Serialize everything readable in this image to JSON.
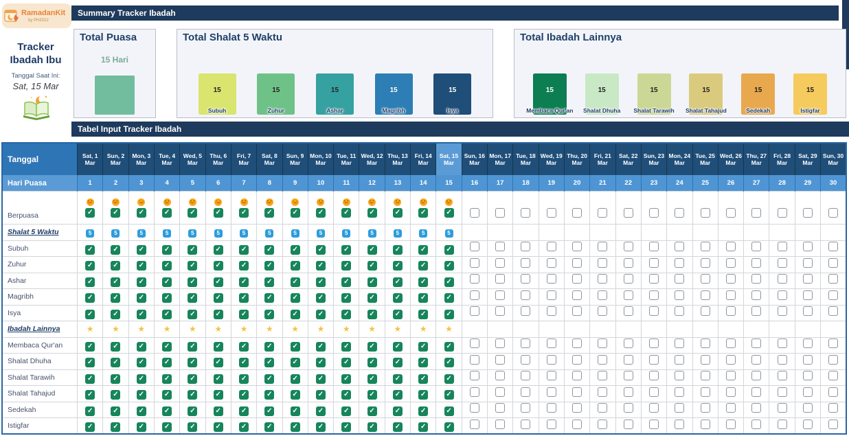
{
  "sidebar": {
    "brand": "RamadanKit",
    "brand_sub": "by PH2022",
    "title": "Tracker Ibadah Ibu",
    "current_date_label": "Tanggal Saat Ini:",
    "current_date": "Sat, 15 Mar"
  },
  "summary": {
    "title": "Summary Tracker Ibadah",
    "total_puasa": {
      "title": "Total Puasa",
      "value_label": "15 Hari",
      "value": 15,
      "bar_color": "#71BD9E"
    },
    "total_shalat": {
      "title": "Total Shalat 5 Waktu",
      "bars": [
        {
          "label": "Subuh",
          "value": "15",
          "color": "#D9E56F",
          "value_color": "#222222"
        },
        {
          "label": "Zuhur",
          "value": "15",
          "color": "#6FC287",
          "value_color": "#222222"
        },
        {
          "label": "Ashar",
          "value": "15",
          "color": "#35A1A1",
          "value_color": "#222222"
        },
        {
          "label": "Magribh",
          "value": "15",
          "color": "#2C7EB4",
          "value_color": "#ffffff"
        },
        {
          "label": "Isya",
          "value": "15",
          "color": "#1F4E79",
          "value_color": "#ffffff"
        }
      ]
    },
    "total_lainnya": {
      "title": "Total Ibadah Lainnya",
      "bars": [
        {
          "label": "Membaca Qur'an",
          "value": "15",
          "color": "#0C7E52",
          "value_color": "#ffffff"
        },
        {
          "label": "Shalat Dhuha",
          "value": "15",
          "color": "#C9E8C6",
          "value_color": "#222222"
        },
        {
          "label": "Shalat Tarawih",
          "value": "15",
          "color": "#CBD795",
          "value_color": "#222222"
        },
        {
          "label": "Shalat Tahajud",
          "value": "15",
          "color": "#D9CA7E",
          "value_color": "#222222"
        },
        {
          "label": "Sedekah",
          "value": "15",
          "color": "#E8A84E",
          "value_color": "#222222"
        },
        {
          "label": "Istigfar",
          "value": "15",
          "color": "#F6CB5E",
          "value_color": "#222222"
        }
      ]
    }
  },
  "input_table": {
    "title": "Tabel Input Tracker Ibadah",
    "corner": "Tanggal",
    "hari_puasa": "Hari Puasa",
    "checked_days": 15,
    "total_days": 30,
    "current_day": 15,
    "icons": {
      "five": "5",
      "star": "★",
      "check": "✓"
    },
    "days": [
      {
        "label": "Sat, 1 Mar",
        "num": "1",
        "current": false
      },
      {
        "label": "Sun, 2 Mar",
        "num": "2",
        "current": false
      },
      {
        "label": "Mon, 3 Mar",
        "num": "3",
        "current": false
      },
      {
        "label": "Tue, 4 Mar",
        "num": "4",
        "current": false
      },
      {
        "label": "Wed, 5 Mar",
        "num": "5",
        "current": false
      },
      {
        "label": "Thu, 6 Mar",
        "num": "6",
        "current": false
      },
      {
        "label": "Fri, 7 Mar",
        "num": "7",
        "current": false
      },
      {
        "label": "Sat, 8 Mar",
        "num": "8",
        "current": false
      },
      {
        "label": "Sun, 9 Mar",
        "num": "9",
        "current": false
      },
      {
        "label": "Mon, 10 Mar",
        "num": "10",
        "current": false
      },
      {
        "label": "Tue, 11 Mar",
        "num": "11",
        "current": false
      },
      {
        "label": "Wed, 12 Mar",
        "num": "12",
        "current": false
      },
      {
        "label": "Thu, 13 Mar",
        "num": "13",
        "current": false
      },
      {
        "label": "Fri, 14 Mar",
        "num": "14",
        "current": false
      },
      {
        "label": "Sat, 15 Mar",
        "num": "15",
        "current": true
      },
      {
        "label": "Sun, 16 Mar",
        "num": "16",
        "current": false
      },
      {
        "label": "Mon, 17 Mar",
        "num": "17",
        "current": false
      },
      {
        "label": "Tue, 18 Mar",
        "num": "18",
        "current": false
      },
      {
        "label": "Wed, 19 Mar",
        "num": "19",
        "current": false
      },
      {
        "label": "Thu, 20 Mar",
        "num": "20",
        "current": false
      },
      {
        "label": "Fri, 21 Mar",
        "num": "21",
        "current": false
      },
      {
        "label": "Sat, 22 Mar",
        "num": "22",
        "current": false
      },
      {
        "label": "Sun, 23 Mar",
        "num": "23",
        "current": false
      },
      {
        "label": "Mon, 24 Mar",
        "num": "24",
        "current": false
      },
      {
        "label": "Tue, 25 Mar",
        "num": "25",
        "current": false
      },
      {
        "label": "Wed, 26 Mar",
        "num": "26",
        "current": false
      },
      {
        "label": "Thu, 27 Mar",
        "num": "27",
        "current": false
      },
      {
        "label": "Fri, 28 Mar",
        "num": "28",
        "current": false
      },
      {
        "label": "Sat, 29 Mar",
        "num": "29",
        "current": false
      },
      {
        "label": "Sun, 30 Mar",
        "num": "30",
        "current": false
      }
    ],
    "rows": [
      {
        "label": "Berpuasa",
        "style": "normal",
        "cell": "emoji-checkbox"
      },
      {
        "label": "Shalat 5 Waktu",
        "style": "section",
        "cell": "five"
      },
      {
        "label": "Subuh",
        "style": "normal",
        "cell": "checkbox"
      },
      {
        "label": "Zuhur",
        "style": "normal",
        "cell": "checkbox"
      },
      {
        "label": "Ashar",
        "style": "normal",
        "cell": "checkbox"
      },
      {
        "label": "Magribh",
        "style": "normal",
        "cell": "checkbox"
      },
      {
        "label": "Isya",
        "style": "normal",
        "cell": "checkbox"
      },
      {
        "label": "Ibadah Lainnya",
        "style": "section",
        "cell": "star"
      },
      {
        "label": "Membaca Qur'an",
        "style": "normal",
        "cell": "checkbox"
      },
      {
        "label": "Shalat Dhuha",
        "style": "normal",
        "cell": "checkbox"
      },
      {
        "label": "Shalat Tarawih",
        "style": "normal",
        "cell": "checkbox"
      },
      {
        "label": "Shalat Tahajud",
        "style": "normal",
        "cell": "checkbox"
      },
      {
        "label": "Sedekah",
        "style": "normal",
        "cell": "checkbox"
      },
      {
        "label": "Istigfar",
        "style": "normal",
        "cell": "checkbox"
      }
    ]
  }
}
